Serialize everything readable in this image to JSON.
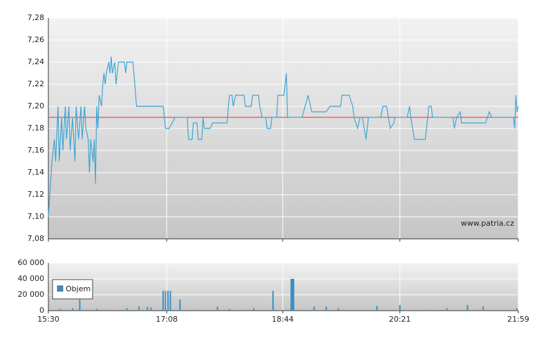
{
  "chart_data": [
    {
      "type": "line",
      "xlim": [
        "15:30",
        "21:59"
      ],
      "ylim": [
        7.08,
        7.28
      ],
      "yticks": [
        {
          "value": 7.08,
          "label": "7,08"
        },
        {
          "value": 7.1,
          "label": "7,10"
        },
        {
          "value": 7.12,
          "label": "7,12"
        },
        {
          "value": 7.14,
          "label": "7,14"
        },
        {
          "value": 7.16,
          "label": "7,16"
        },
        {
          "value": 7.18,
          "label": "7,18"
        },
        {
          "value": 7.2,
          "label": "7,20"
        },
        {
          "value": 7.22,
          "label": "7,22"
        },
        {
          "value": 7.24,
          "label": "7,24"
        },
        {
          "value": 7.26,
          "label": "7,26"
        },
        {
          "value": 7.28,
          "label": "7,28"
        }
      ],
      "grid": true,
      "reference_line": {
        "value": 7.19,
        "color": "#e03030"
      },
      "annotation": "www.patria.cz",
      "color": "#3ea6d4",
      "x": [
        "15:30",
        "15:33",
        "15:35",
        "15:36",
        "15:38",
        "15:39",
        "15:41",
        "15:42",
        "15:44",
        "15:45",
        "15:47",
        "15:48",
        "15:50",
        "15:52",
        "15:53",
        "15:55",
        "15:57",
        "15:58",
        "16:00",
        "16:01",
        "16:03",
        "16:04",
        "16:05",
        "16:06",
        "16:07",
        "16:08",
        "16:09",
        "16:10",
        "16:11",
        "16:12",
        "16:14",
        "16:15",
        "16:16",
        "16:17",
        "16:18",
        "16:20",
        "16:21",
        "16:22",
        "16:23",
        "16:25",
        "16:26",
        "16:28",
        "16:33",
        "16:34",
        "16:35",
        "16:40",
        "16:43",
        "16:53",
        "17:05",
        "17:06",
        "17:07",
        "17:10",
        "17:15",
        "17:25",
        "17:26",
        "17:29",
        "17:30",
        "17:33",
        "17:34",
        "17:37",
        "17:38",
        "17:39",
        "17:44",
        "17:46",
        "17:58",
        "17:59",
        "18:00",
        "18:02",
        "18:03",
        "18:05",
        "18:12",
        "18:13",
        "18:18",
        "18:19",
        "18:24",
        "18:25",
        "18:27",
        "18:30",
        "18:31",
        "18:34",
        "18:35",
        "18:39",
        "18:40",
        "18:45",
        "18:47",
        "18:48",
        "19:00",
        "19:05",
        "19:07",
        "19:08",
        "19:20",
        "19:23",
        "19:32",
        "19:33",
        "19:39",
        "19:42",
        "19:43",
        "19:46",
        "19:48",
        "19:50",
        "19:53",
        "19:55",
        "20:05",
        "20:07",
        "20:10",
        "20:13",
        "20:16",
        "20:17",
        "20:27",
        "20:29",
        "20:30",
        "20:33",
        "20:36",
        "20:42",
        "20:45",
        "20:47",
        "20:48",
        "21:05",
        "21:06",
        "21:08",
        "21:11",
        "21:12",
        "21:15",
        "21:32",
        "21:35",
        "21:37",
        "21:55",
        "21:56",
        "21:57",
        "21:58",
        "21:59"
      ],
      "values": [
        7.1,
        7.15,
        7.17,
        7.15,
        7.2,
        7.15,
        7.19,
        7.16,
        7.2,
        7.17,
        7.2,
        7.16,
        7.19,
        7.15,
        7.2,
        7.17,
        7.2,
        7.17,
        7.2,
        7.18,
        7.17,
        7.14,
        7.17,
        7.16,
        7.15,
        7.17,
        7.13,
        7.2,
        7.18,
        7.21,
        7.2,
        7.22,
        7.23,
        7.22,
        7.23,
        7.24,
        7.23,
        7.245,
        7.23,
        7.24,
        7.22,
        7.24,
        7.24,
        7.23,
        7.24,
        7.24,
        7.2,
        7.2,
        7.2,
        7.19,
        7.18,
        7.18,
        7.19,
        7.19,
        7.17,
        7.17,
        7.185,
        7.185,
        7.17,
        7.17,
        7.19,
        7.18,
        7.18,
        7.185,
        7.185,
        7.2,
        7.21,
        7.21,
        7.2,
        7.21,
        7.21,
        7.2,
        7.2,
        7.21,
        7.21,
        7.2,
        7.19,
        7.19,
        7.18,
        7.18,
        7.19,
        7.19,
        7.21,
        7.21,
        7.23,
        7.19,
        7.19,
        7.21,
        7.2,
        7.195,
        7.195,
        7.2,
        7.2,
        7.21,
        7.21,
        7.2,
        7.19,
        7.18,
        7.19,
        7.19,
        7.17,
        7.19,
        7.19,
        7.2,
        7.2,
        7.18,
        7.185,
        7.19,
        7.19,
        7.2,
        7.19,
        7.17,
        7.17,
        7.17,
        7.2,
        7.2,
        7.19,
        7.19,
        7.18,
        7.19,
        7.195,
        7.185,
        7.185,
        7.185,
        7.195,
        7.19,
        7.19,
        7.18,
        7.21,
        7.195,
        7.2
      ]
    },
    {
      "type": "bar",
      "xlim": [
        "15:30",
        "21:59"
      ],
      "xticks": [
        "15:30",
        "17:08",
        "18:44",
        "20:21",
        "21:59"
      ],
      "ylim": [
        0,
        60000
      ],
      "yticks": [
        0,
        {
          "value": 20000,
          "label": "20 000"
        },
        {
          "value": 40000,
          "label": "40 000"
        },
        {
          "value": 60000,
          "label": "60 000"
        }
      ],
      "grid": true,
      "series": [
        {
          "name": "Objem",
          "color": "#3a8fc0",
          "x": [
            "15:40",
            "15:50",
            "15:56",
            "16:10",
            "16:35",
            "16:45",
            "16:52",
            "16:55",
            "17:05",
            "17:07",
            "17:09",
            "17:11",
            "17:19",
            "17:50",
            "18:00",
            "18:20",
            "18:36",
            "18:51",
            "18:52",
            "18:53",
            "19:10",
            "19:20",
            "19:30",
            "20:02",
            "20:21",
            "21:00",
            "21:17",
            "21:30",
            "21:58"
          ],
          "values": [
            2000,
            3000,
            14000,
            2000,
            3000,
            5000,
            5000,
            4000,
            25000,
            25000,
            25000,
            25000,
            14000,
            5000,
            2000,
            3000,
            25000,
            40000,
            40000,
            40000,
            5000,
            5000,
            3000,
            6000,
            7000,
            3000,
            7000,
            5000,
            3000
          ]
        }
      ]
    }
  ]
}
